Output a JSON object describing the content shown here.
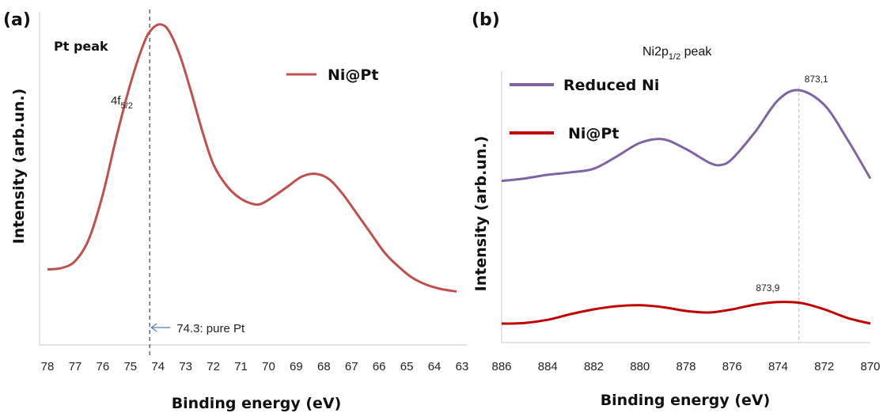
{
  "chart_data": [
    {
      "panel": "(a)",
      "type": "line",
      "title": "Pt peak",
      "xlabel": "Binding energy (eV)",
      "ylabel": "Intensity (arb.un.)",
      "xlim": [
        78,
        63
      ],
      "x_reversed": true,
      "x_ticks": [
        "78",
        "77",
        "76",
        "75",
        "74",
        "73",
        "72",
        "71",
        "70",
        "69",
        "68",
        "67",
        "66",
        "65",
        "64",
        "63"
      ],
      "series": [
        {
          "name": "Ni@Pt",
          "color": "#c0504d",
          "x": [
            78,
            77.5,
            77,
            76.5,
            76,
            75.5,
            75,
            74.5,
            74.2,
            73.9,
            73.6,
            73.2,
            72.8,
            72.4,
            72,
            71.5,
            71,
            70.5,
            70.2,
            69.8,
            69.3,
            68.8,
            68.3,
            67.8,
            67.3,
            66.8,
            66.3,
            65.8,
            65.3,
            64.8,
            64.3,
            63.8,
            63.2
          ],
          "values": [
            0.13,
            0.135,
            0.16,
            0.24,
            0.4,
            0.61,
            0.8,
            0.95,
            1.0,
            1.015,
            0.99,
            0.9,
            0.77,
            0.63,
            0.51,
            0.43,
            0.385,
            0.365,
            0.37,
            0.395,
            0.43,
            0.465,
            0.475,
            0.455,
            0.4,
            0.33,
            0.26,
            0.19,
            0.14,
            0.1,
            0.075,
            0.06,
            0.05
          ]
        }
      ],
      "annotations": [
        {
          "text": "74.3: pure Pt",
          "x": 74.3
        },
        {
          "text": "4f",
          "subscript": "5/2"
        }
      ],
      "reference_line_x": 74.3,
      "legend": "top-right"
    },
    {
      "panel": "(b)",
      "type": "line",
      "title": "Ni2p",
      "title_subscript": "1/2",
      "title_suffix": " peak",
      "xlabel": "Binding energy (eV)",
      "ylabel": "Intensity (arb.un.)",
      "xlim": [
        886,
        870
      ],
      "x_reversed": true,
      "x_ticks": [
        "886",
        "884",
        "882",
        "880",
        "878",
        "876",
        "874",
        "872",
        "870"
      ],
      "series": [
        {
          "name": "Reduced Ni",
          "color": "#8064a2",
          "x": [
            886,
            885,
            884,
            883,
            882,
            881,
            880,
            879,
            878,
            877,
            876.5,
            876,
            875,
            874,
            873.1,
            872,
            871,
            870
          ],
          "values": [
            0.63,
            0.64,
            0.655,
            0.665,
            0.68,
            0.73,
            0.785,
            0.8,
            0.76,
            0.705,
            0.695,
            0.72,
            0.83,
            0.96,
            1.0,
            0.94,
            0.8,
            0.64
          ]
        },
        {
          "name": "Ni@Pt",
          "color": "#c00000",
          "x": [
            886,
            885,
            884,
            883,
            882,
            881,
            880,
            879,
            878,
            877,
            876,
            875,
            874,
            873,
            872,
            871,
            870
          ],
          "values": [
            0.0,
            0.002,
            0.012,
            0.03,
            0.045,
            0.055,
            0.058,
            0.052,
            0.04,
            0.035,
            0.045,
            0.06,
            0.068,
            0.065,
            0.045,
            0.018,
            0.0
          ]
        }
      ],
      "annotations": [
        {
          "text": "873,1",
          "x": 873.1
        },
        {
          "text": "873,9",
          "x": 873.9
        }
      ],
      "legend": "top-left"
    }
  ]
}
